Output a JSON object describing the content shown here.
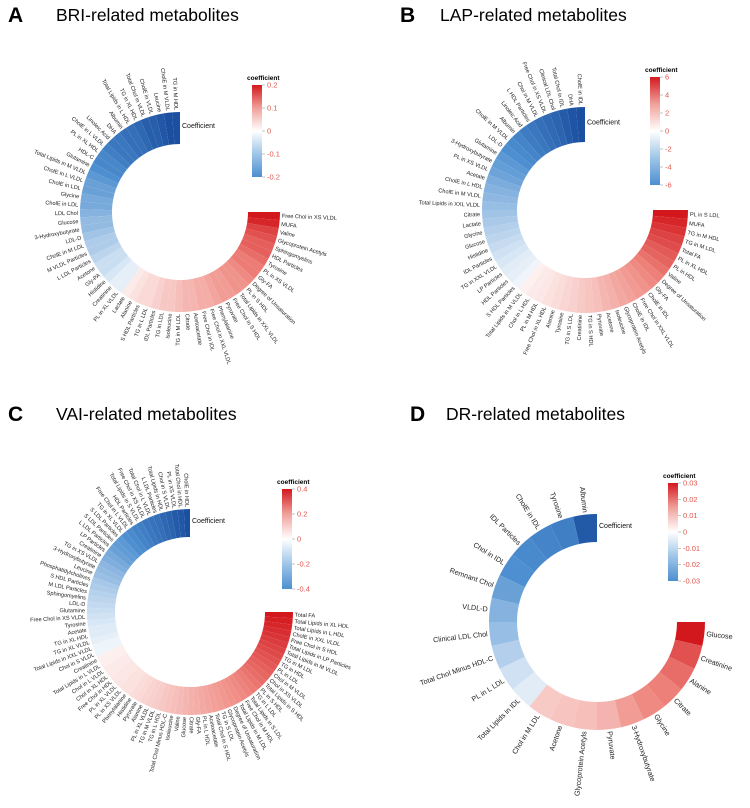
{
  "figure": {
    "colors": {
      "neg_strong": "#1b4fa0",
      "neg_mid": "#4d8fd0",
      "neutral": "#ffffff",
      "pos_strong": "#d3181d",
      "pos_mid": "#ef8a82",
      "tick_text": "#e0584e"
    }
  },
  "chart_data": [
    {
      "panel": "A",
      "type": "circular_bar",
      "title": "BRI-related metabolites",
      "legend_title": "coefficient",
      "coefficient_label": "Coefficient",
      "ticks": [
        0.2,
        0.1,
        0,
        -0.1,
        -0.2
      ],
      "tick_labels": [
        "0.2",
        "0.1",
        "0",
        "-0.1",
        "-0.2"
      ],
      "range": [
        -0.2,
        0.2
      ],
      "negative": {
        "categories": [
          "TG in M HDL",
          "CholE in M VLDL",
          "Leucine",
          "CholE in VLDL",
          "Total Chol in VLDL",
          "TG in XL HDL",
          "Total Lipids in L HDL",
          "Albumin",
          "DHA",
          "Linoleic Acid",
          "CholE in L VLDL",
          "PL in XL HDL",
          "HDL-C",
          "Glutamine",
          "Total Lipids in M VLDL",
          "CholE in L VLDL",
          "CholE in LDL",
          "Glycine",
          "CholE in LDL",
          "LDL Chol",
          "Glucose",
          "3-Hydroxybutyrate",
          "LDL-D",
          "CholE in M LDL",
          "M VLDL Particles",
          "L LDL Particles",
          "Acetone",
          "Gly-PA",
          "Histidine",
          "Creatinine",
          "PL in XL VLDL"
        ],
        "values": [
          -0.2,
          -0.2,
          -0.19,
          -0.18,
          -0.18,
          -0.17,
          -0.16,
          -0.16,
          -0.15,
          -0.15,
          -0.14,
          -0.13,
          -0.13,
          -0.12,
          -0.11,
          -0.1,
          -0.1,
          -0.09,
          -0.09,
          -0.08,
          -0.07,
          -0.07,
          -0.06,
          -0.05,
          -0.05,
          -0.04,
          -0.03,
          -0.03,
          -0.02,
          -0.01,
          -0.01
        ]
      },
      "positive": {
        "categories": [
          "Free Chol in XS VLDL",
          "MUFA",
          "Valine",
          "Glycoprotein Acetyls",
          "Sphingomyelins",
          "HDL Particles",
          "Tyrosine",
          "PL in XS VLDL",
          "Gly-FA",
          "Degree of Unsaturation",
          "PL in S HDL",
          "Total Lipids in XXL VLDL",
          "Free Chol in S HDL",
          "Pyruvate",
          "Phenylalanine",
          "Free Chol in XXL VLDL",
          "Free Chol in IDL",
          "Acetoacetate",
          "Citrate",
          "TG in M LDL",
          "Isoleucine",
          "TG in LDL",
          "IDL Particles",
          "TG in L LDL",
          "S HDL Particles",
          "Alanine",
          "Lactate"
        ],
        "values": [
          0.2,
          0.19,
          0.17,
          0.16,
          0.15,
          0.15,
          0.14,
          0.13,
          0.13,
          0.12,
          0.11,
          0.11,
          0.1,
          0.1,
          0.09,
          0.08,
          0.08,
          0.07,
          0.07,
          0.06,
          0.05,
          0.05,
          0.04,
          0.03,
          0.03,
          0.02,
          0.01
        ]
      }
    },
    {
      "panel": "B",
      "type": "circular_bar",
      "title": "LAP-related metabolites",
      "legend_title": "coefficient",
      "coefficient_label": "Coefficient",
      "ticks": [
        6,
        4,
        2,
        0,
        -2,
        -4,
        -6
      ],
      "tick_labels": [
        "6",
        "4",
        "2",
        "0",
        "-2",
        "-4",
        "-6"
      ],
      "range": [
        -6,
        6
      ],
      "negative": {
        "categories": [
          "CholE in IDL",
          "DHA",
          "Total Chol in IDL",
          "Clinical LDL Chol",
          "Free Chol in XS VLDL",
          "Chol in M VLDL",
          "L HDL Particles",
          "Linoleic Acid",
          "Albumin",
          "CholE in M VLDL",
          "LDL-D",
          "Glutamine",
          "3-Hydroxybutyrate",
          "PL in XS VLDL",
          "Acetate",
          "CholE in L HDL",
          "CholE in M VLDL",
          "Total Lipids in XXL VLDL",
          "Citrate",
          "Lactate",
          "Glycine",
          "Glucose",
          "Histidine",
          "IDL Particles",
          "TG in XXL VLDL",
          "LP Particles",
          "HDL Particles",
          "S HDL Particles"
        ],
        "values": [
          -6,
          -5.8,
          -5.5,
          -5.2,
          -5,
          -4.8,
          -4.5,
          -4.3,
          -4,
          -3.8,
          -3.6,
          -3.3,
          -3.1,
          -2.9,
          -2.6,
          -2.4,
          -2.2,
          -2,
          -1.8,
          -1.6,
          -1.4,
          -1.2,
          -1,
          -0.8,
          -0.6,
          -0.4,
          -0.3,
          -0.1
        ]
      },
      "positive": {
        "categories": [
          "PL in S LDL",
          "MUFA",
          "TG in M HDL",
          "TG in M LDL",
          "Total FA",
          "PL in XL HDL",
          "PL in HDL",
          "Valine",
          "Degree of Unsaturation",
          "Gly-FA",
          "CholE in IDL",
          "Free Chol in XXL VLDL",
          "CholE in IDL",
          "Glycoprotein Acetyls",
          "Isoleucine",
          "Acetone",
          "Pyruvate",
          "TG in S HDL",
          "Creatinine",
          "TG in S LDL",
          "Tyrosine",
          "Alanine",
          "Free Chol in XL HDL",
          "PL in M HDL",
          "Chol in L HDL",
          "Total Lipids in M VLDL"
        ],
        "values": [
          6,
          5.7,
          5.4,
          5.1,
          4.9,
          4.6,
          4.4,
          4.1,
          3.8,
          3.6,
          3.3,
          3.1,
          2.8,
          2.6,
          2.3,
          2.1,
          1.8,
          1.6,
          1.4,
          1.2,
          1,
          0.8,
          0.6,
          0.4,
          0.3,
          0.1
        ]
      }
    },
    {
      "panel": "C",
      "type": "circular_bar",
      "title": "VAI-related metabolites",
      "legend_title": "coefficient",
      "coefficient_label": "Coefficient",
      "ticks": [
        0.4,
        0.2,
        0,
        -0.2,
        -0.4
      ],
      "tick_labels": [
        "0.4",
        "0.2",
        "0",
        "-0.2",
        "-0.4"
      ],
      "range": [
        -0.4,
        0.4
      ],
      "negative": {
        "categories": [
          "CholE in HDL",
          "Total Chol in HDL",
          "PL in XS VLDL",
          "Chol in S VLDL",
          "Total Lipids in HDL",
          "L LDL Particles",
          "Total Chol in L VLDL",
          "Free Chol in XS VLDL",
          "Total Lipids in S VLDL",
          "HDL Particles",
          "Free Chol in L VLDL",
          "TG in XL VLDL",
          "S LDL Particles",
          "S LDL Particles",
          "L LDL Particles",
          "LP Particles",
          "Creatinine",
          "TG in XS VLDL",
          "3-Hydroxybutyrate",
          "Leucine",
          "Phosphatidylcholines",
          "S HDL Particles",
          "M LDL Particles",
          "Sphingomyelins",
          "LDL-D",
          "Glutamine",
          "Free Chol in XS VLDL",
          "Tyrosine",
          "Acetate",
          "TG in XL HDL",
          "TG in XL VLDL",
          "Total Lipids in XXL VLDL",
          "Chol in S VLDL"
        ],
        "values": [
          -0.4,
          -0.38,
          -0.37,
          -0.35,
          -0.34,
          -0.32,
          -0.31,
          -0.3,
          -0.28,
          -0.27,
          -0.25,
          -0.24,
          -0.22,
          -0.21,
          -0.2,
          -0.18,
          -0.17,
          -0.15,
          -0.14,
          -0.13,
          -0.11,
          -0.1,
          -0.09,
          -0.08,
          -0.07,
          -0.06,
          -0.05,
          -0.04,
          -0.03,
          -0.03,
          -0.02,
          -0.01,
          -0.01
        ]
      },
      "positive": {
        "categories": [
          "Total FA",
          "Total Lipids in XL HDL",
          "Total Lipids in L HDL",
          "CholE in XXL VLDL",
          "Free Chol in S HDL",
          "Total Lipids in LP Particles",
          "Total Lipids in M VLDL",
          "TG in M LDL",
          "TG in HDL",
          "PL in LDL",
          "Chol in M VLDL",
          "Chol in XS VLDL",
          "Total Lipids in S HDL",
          "PL in S HDL",
          "TG in L LDL",
          "Total Lipids in S LDL",
          "Free Chol in M HDL",
          "Total Lipids in M LDL",
          "Degree of Unsaturation",
          "Glycoprotein Acetyls",
          "TG in S LDL",
          "Total Chol in S HDL",
          "Acetoacetate",
          "PL in L HDL",
          "Gly-FA",
          "Citrate",
          "Glucose",
          "Valine",
          "Isoleucine",
          "Total Chol Minus HDL-C",
          "TG in L HDL",
          "TG in M VLDL",
          "PL in XL VLDL",
          "Alanine",
          "Pyruvate",
          "Histidine",
          "Phenylalanine",
          "PL in XS VLDL",
          "PL in XL VLDL",
          "Free Chol in HDL",
          "Chol in XL HDL",
          "Chol in L VLDL",
          "Total Lipids in L VLDL",
          "Creatinine"
        ],
        "values": [
          0.4,
          0.39,
          0.38,
          0.37,
          0.36,
          0.35,
          0.34,
          0.33,
          0.32,
          0.31,
          0.3,
          0.29,
          0.28,
          0.27,
          0.26,
          0.25,
          0.24,
          0.23,
          0.22,
          0.21,
          0.2,
          0.19,
          0.18,
          0.17,
          0.16,
          0.15,
          0.14,
          0.13,
          0.12,
          0.11,
          0.1,
          0.09,
          0.08,
          0.07,
          0.06,
          0.05,
          0.04,
          0.04,
          0.03,
          0.03,
          0.02,
          0.02,
          0.01,
          0.01
        ]
      }
    },
    {
      "panel": "D",
      "type": "circular_bar",
      "title": "DR-related metabolites",
      "legend_title": "coefficient",
      "coefficient_label": "Coefficient",
      "ticks": [
        0.03,
        0.02,
        0.01,
        0,
        -0.01,
        -0.02,
        -0.03
      ],
      "tick_labels": [
        "0.03",
        "0.02",
        "0.01",
        "0",
        "-0.01",
        "-0.02",
        "-0.03"
      ],
      "range": [
        -0.03,
        0.03
      ],
      "negative": {
        "categories": [
          "Albumin",
          "Tyrosine",
          "CholE in IDL",
          "IDL Particles",
          "Chol in IDL",
          "Remnant Chol",
          "VLDL-D",
          "Clinical LDL Chol",
          "Total Chol Minus HDL-C",
          "PL in L LDL",
          "Total Lipids in IDL"
        ],
        "values": [
          -0.028,
          -0.021,
          -0.02,
          -0.019,
          -0.018,
          -0.015,
          -0.012,
          -0.01,
          -0.007,
          -0.004,
          -0.002
        ]
      },
      "positive": {
        "categories": [
          "Glucose",
          "Creatinine",
          "Alanine",
          "Citrate",
          "Glycine",
          "3-Hydroxybutyrate",
          "Pyruvate",
          "Glycoprotein Acetyls",
          "Acetone",
          "Chol in M LDL"
        ],
        "values": [
          0.03,
          0.024,
          0.021,
          0.019,
          0.018,
          0.015,
          0.011,
          0.009,
          0.008,
          0.007
        ]
      }
    }
  ]
}
